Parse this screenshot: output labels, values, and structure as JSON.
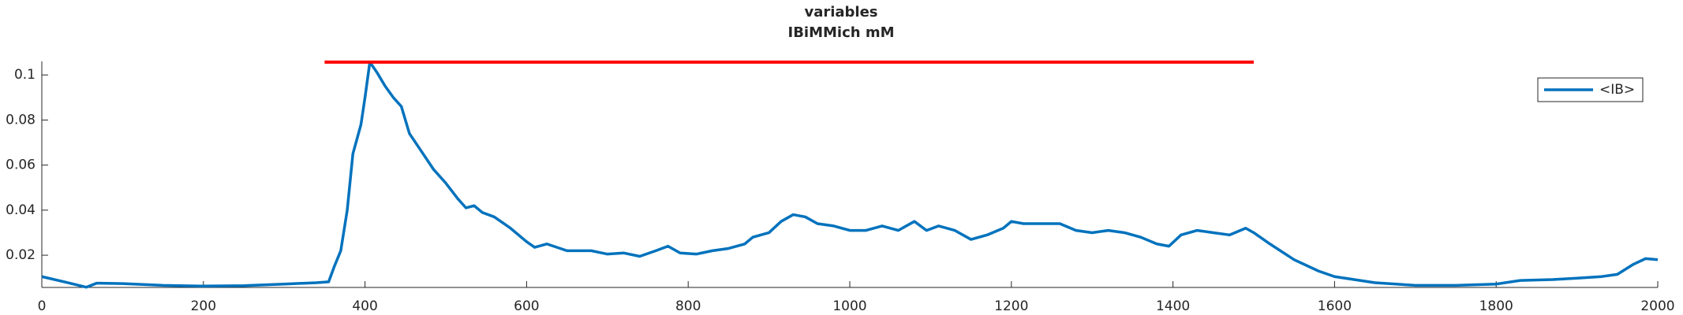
{
  "chart_data": {
    "type": "line",
    "title": "variables",
    "subtitle": "IBiMMich mM",
    "x": [
      0,
      30,
      55,
      68,
      100,
      150,
      200,
      250,
      300,
      340,
      355,
      362,
      370,
      378,
      385,
      395,
      400,
      406,
      415,
      425,
      435,
      445,
      455,
      470,
      485,
      500,
      515,
      525,
      535,
      545,
      560,
      580,
      600,
      610,
      625,
      650,
      680,
      700,
      720,
      740,
      760,
      775,
      790,
      810,
      830,
      850,
      870,
      880,
      900,
      915,
      930,
      945,
      960,
      980,
      1000,
      1020,
      1040,
      1060,
      1080,
      1095,
      1110,
      1130,
      1150,
      1170,
      1190,
      1200,
      1215,
      1240,
      1260,
      1280,
      1300,
      1320,
      1340,
      1360,
      1380,
      1395,
      1410,
      1430,
      1450,
      1470,
      1490,
      1500,
      1520,
      1550,
      1580,
      1600,
      1650,
      1700,
      1750,
      1800,
      1830,
      1870,
      1900,
      1930,
      1950,
      1970,
      1985,
      2000
    ],
    "series": [
      {
        "name": "<IB>",
        "color": "#0072bd",
        "values": [
          0.0105,
          0.008,
          0.0058,
          0.0076,
          0.0074,
          0.0066,
          0.0063,
          0.0065,
          0.0072,
          0.0078,
          0.0082,
          0.015,
          0.022,
          0.04,
          0.065,
          0.078,
          0.09,
          0.1057,
          0.101,
          0.095,
          0.09,
          0.086,
          0.074,
          0.066,
          0.058,
          0.052,
          0.045,
          0.041,
          0.042,
          0.039,
          0.037,
          0.032,
          0.026,
          0.0235,
          0.025,
          0.022,
          0.022,
          0.0205,
          0.021,
          0.0195,
          0.022,
          0.024,
          0.021,
          0.0205,
          0.022,
          0.023,
          0.025,
          0.028,
          0.03,
          0.035,
          0.038,
          0.037,
          0.034,
          0.033,
          0.031,
          0.031,
          0.033,
          0.031,
          0.035,
          0.031,
          0.033,
          0.031,
          0.027,
          0.029,
          0.032,
          0.035,
          0.034,
          0.034,
          0.034,
          0.031,
          0.03,
          0.031,
          0.03,
          0.028,
          0.025,
          0.024,
          0.029,
          0.031,
          0.03,
          0.029,
          0.032,
          0.03,
          0.025,
          0.018,
          0.013,
          0.0105,
          0.0078,
          0.0066,
          0.0066,
          0.0072,
          0.0088,
          0.0092,
          0.0098,
          0.0105,
          0.0115,
          0.016,
          0.0185,
          0.018
        ]
      }
    ],
    "reference_line": {
      "x": [
        350,
        1500
      ],
      "values": [
        0.1057,
        0.1057
      ],
      "color": "#ff0000"
    },
    "xlim": [
      0,
      2000
    ],
    "xticks": [
      0,
      200,
      400,
      600,
      800,
      1000,
      1200,
      1400,
      1600,
      1800,
      2000
    ],
    "ylim": [
      0.0057,
      0.106
    ],
    "yticks": [
      0.02,
      0.04,
      0.06,
      0.08,
      0.1
    ],
    "legend": "top-right"
  }
}
